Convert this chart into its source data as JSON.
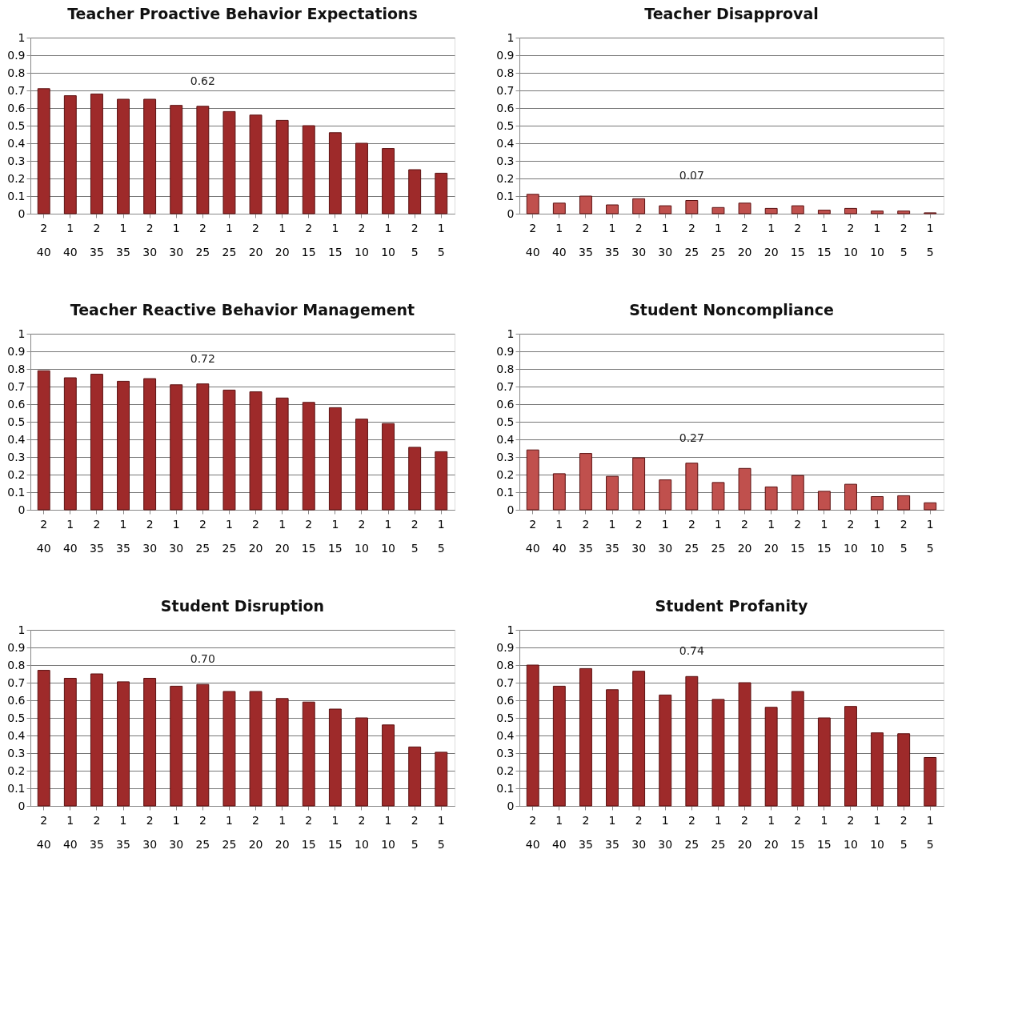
{
  "chart_data": [
    {
      "type": "bar",
      "title": "Teacher Proactive Behavior Expectations",
      "categories": [
        "2\n40",
        "1\n40",
        "2\n35",
        "1\n35",
        "2\n30",
        "1\n30",
        "2\n25",
        "1\n25",
        "2\n20",
        "1\n20",
        "2\n15",
        "1\n15",
        "2\n10",
        "1\n10",
        "2\n5",
        "1\n5"
      ],
      "values": [
        0.71,
        0.67,
        0.68,
        0.65,
        0.65,
        0.615,
        0.61,
        0.58,
        0.56,
        0.53,
        0.5,
        0.46,
        0.4,
        0.37,
        0.25,
        0.23
      ],
      "color": "#9e2a2a",
      "ylim": [
        0,
        1
      ],
      "yticks": [
        0,
        0.1,
        0.2,
        0.3,
        0.4,
        0.5,
        0.6,
        0.7,
        0.8,
        0.9,
        1
      ],
      "grid": "y",
      "annotations": [
        "0.62"
      ]
    },
    {
      "type": "bar",
      "title": "Teacher Disapproval",
      "categories": [
        "2\n40",
        "1\n40",
        "2\n35",
        "1\n35",
        "2\n30",
        "1\n30",
        "2\n25",
        "1\n25",
        "2\n20",
        "1\n20",
        "2\n15",
        "1\n15",
        "2\n10",
        "1\n10",
        "2\n5",
        "1\n5"
      ],
      "values": [
        0.11,
        0.06,
        0.1,
        0.05,
        0.085,
        0.045,
        0.075,
        0.035,
        0.06,
        0.03,
        0.045,
        0.02,
        0.03,
        0.015,
        0.015,
        0.005
      ],
      "color": "#c0504d",
      "ylim": [
        0,
        1
      ],
      "yticks": [
        0,
        0.1,
        0.2,
        0.3,
        0.4,
        0.5,
        0.6,
        0.7,
        0.8,
        0.9,
        1
      ],
      "grid": "y",
      "annotations": [
        "0.07"
      ]
    },
    {
      "type": "bar",
      "title": "Teacher Reactive Behavior Management",
      "categories": [
        "2\n40",
        "1\n40",
        "2\n35",
        "1\n35",
        "2\n30",
        "1\n30",
        "2\n25",
        "1\n25",
        "2\n20",
        "1\n20",
        "2\n15",
        "1\n15",
        "2\n10",
        "1\n10",
        "2\n5",
        "1\n5"
      ],
      "values": [
        0.79,
        0.75,
        0.77,
        0.73,
        0.745,
        0.71,
        0.715,
        0.68,
        0.67,
        0.635,
        0.61,
        0.58,
        0.515,
        0.49,
        0.355,
        0.33
      ],
      "color": "#9e2a2a",
      "ylim": [
        0,
        1
      ],
      "yticks": [
        0,
        0.1,
        0.2,
        0.3,
        0.4,
        0.5,
        0.6,
        0.7,
        0.8,
        0.9,
        1
      ],
      "grid": "y",
      "annotations": [
        "0.72"
      ]
    },
    {
      "type": "bar",
      "title": "Student Noncompliance",
      "categories": [
        "2\n40",
        "1\n40",
        "2\n35",
        "1\n35",
        "2\n30",
        "1\n30",
        "2\n25",
        "1\n25",
        "2\n20",
        "1\n20",
        "2\n15",
        "1\n15",
        "2\n10",
        "1\n10",
        "2\n5",
        "1\n5"
      ],
      "values": [
        0.34,
        0.205,
        0.32,
        0.19,
        0.295,
        0.17,
        0.265,
        0.155,
        0.235,
        0.13,
        0.195,
        0.105,
        0.145,
        0.075,
        0.08,
        0.04
      ],
      "color": "#c0504d",
      "ylim": [
        0,
        1
      ],
      "yticks": [
        0,
        0.1,
        0.2,
        0.3,
        0.4,
        0.5,
        0.6,
        0.7,
        0.8,
        0.9,
        1
      ],
      "grid": "y",
      "annotations": [
        "0.27"
      ]
    },
    {
      "type": "bar",
      "title": "Student Disruption",
      "categories": [
        "2\n40",
        "1\n40",
        "2\n35",
        "1\n35",
        "2\n30",
        "1\n30",
        "2\n25",
        "1\n25",
        "2\n20",
        "1\n20",
        "2\n15",
        "1\n15",
        "2\n10",
        "1\n10",
        "2\n5",
        "1\n5"
      ],
      "values": [
        0.77,
        0.725,
        0.75,
        0.705,
        0.725,
        0.68,
        0.69,
        0.65,
        0.65,
        0.61,
        0.59,
        0.55,
        0.5,
        0.46,
        0.335,
        0.305
      ],
      "color": "#9e2a2a",
      "ylim": [
        0,
        1
      ],
      "yticks": [
        0,
        0.1,
        0.2,
        0.3,
        0.4,
        0.5,
        0.6,
        0.7,
        0.8,
        0.9,
        1
      ],
      "grid": "y",
      "annotations": [
        "0.70"
      ]
    },
    {
      "type": "bar",
      "title": "Student Profanity",
      "categories": [
        "2\n40",
        "1\n40",
        "2\n35",
        "1\n35",
        "2\n30",
        "1\n30",
        "2\n25",
        "1\n25",
        "2\n20",
        "1\n20",
        "2\n15",
        "1\n15",
        "2\n10",
        "1\n10",
        "2\n5",
        "1\n5"
      ],
      "values": [
        0.8,
        0.68,
        0.78,
        0.66,
        0.765,
        0.63,
        0.735,
        0.605,
        0.7,
        0.56,
        0.65,
        0.5,
        0.565,
        0.415,
        0.41,
        0.275
      ],
      "color": "#9e2a2a",
      "ylim": [
        0,
        1
      ],
      "yticks": [
        0,
        0.1,
        0.2,
        0.3,
        0.4,
        0.5,
        0.6,
        0.7,
        0.8,
        0.9,
        1
      ],
      "grid": "y",
      "annotations": [
        "0.74"
      ]
    }
  ]
}
